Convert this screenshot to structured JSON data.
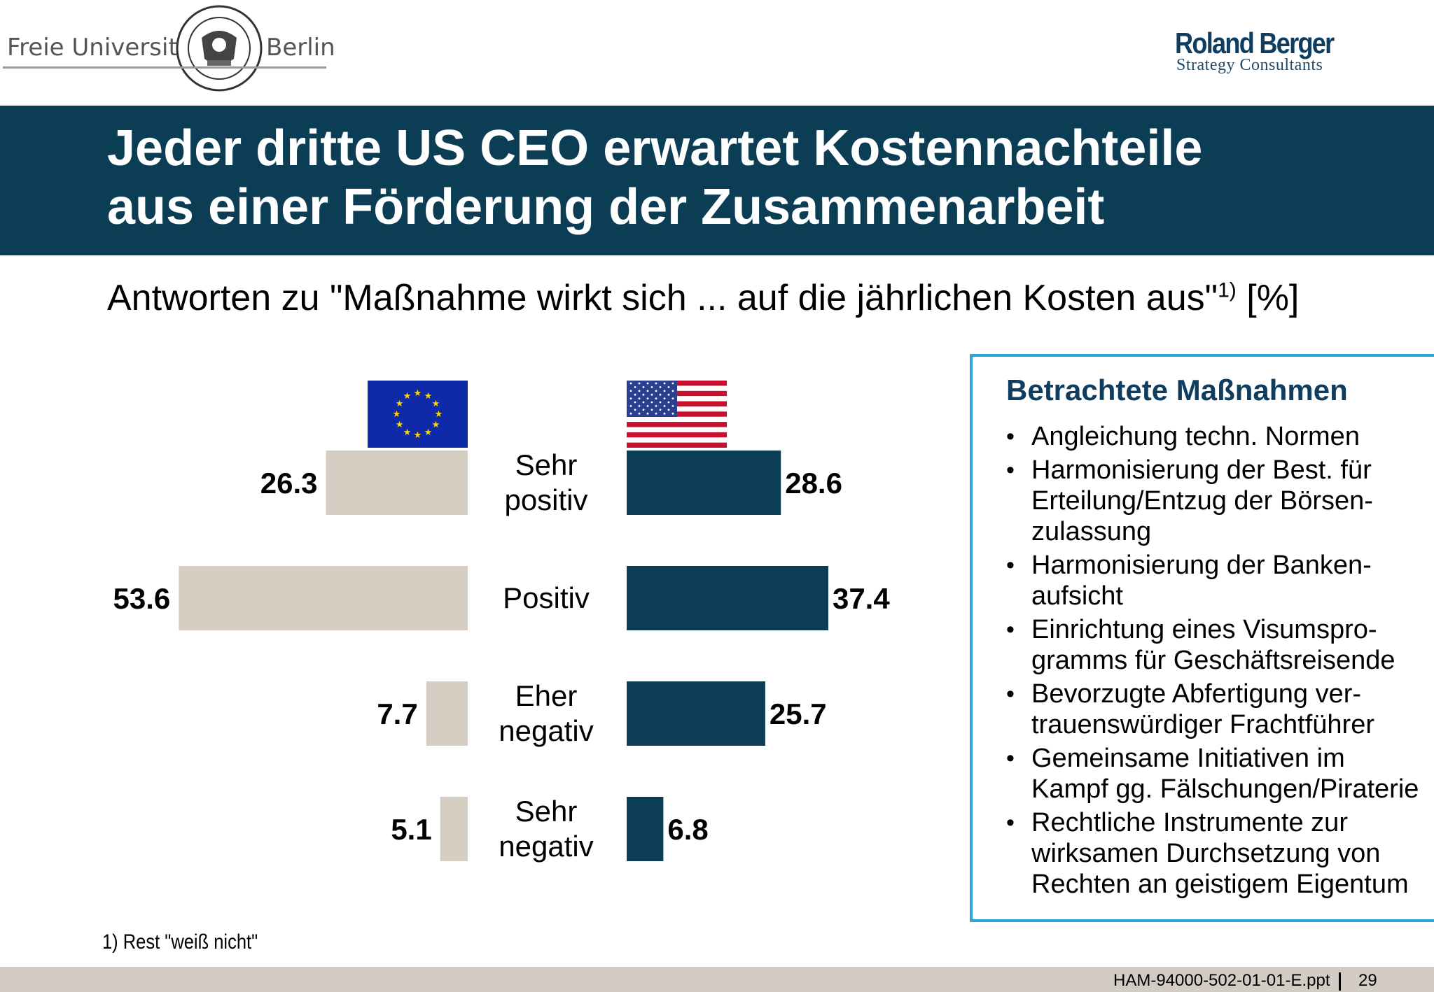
{
  "header": {
    "university_left": "Freie Universität",
    "university_right": "Berlin",
    "company_name": "Roland Berger",
    "company_sub": "Strategy Consultants"
  },
  "title": {
    "line1": "Jeder dritte US CEO erwartet Kostennachteile",
    "line2": "aus einer Förderung der Zusammenarbeit"
  },
  "subtitle": {
    "text": "Antworten zu \"Maßnahme wirkt sich ... auf die jährlichen Kosten aus\"",
    "sup": "1)",
    "unit": " [%]"
  },
  "chart_data": {
    "type": "bar",
    "orientation": "horizontal-butterfly",
    "categories": [
      [
        "Sehr",
        "positiv"
      ],
      [
        "Positiv"
      ],
      [
        "Eher",
        "negativ"
      ],
      [
        "Sehr",
        "negativ"
      ]
    ],
    "series": [
      {
        "id": "eu",
        "values": [
          26.3,
          53.6,
          7.7,
          5.1
        ],
        "color": "#d6cdc3",
        "flag": "EU"
      },
      {
        "id": "us",
        "values": [
          28.6,
          37.4,
          25.7,
          6.8
        ],
        "color": "#0b3d55",
        "flag": "USA"
      }
    ],
    "unit": "%"
  },
  "info_box": {
    "title": "Betrachtete Maßnahmen",
    "items": [
      "Angleichung techn. Normen",
      "Harmonisierung der Best. für\nErteilung/Entzug der Börsen-\nzulassung",
      "Harmonisierung der Banken-\naufsicht",
      "Einrichtung eines Visumspro-\ngramms für Geschäftsreisende",
      "Bevorzugte Abfertigung ver-\ntrauenswürdiger Frachtführer",
      "Gemeinsame Initiativen im\nKampf gg. Fälschungen/Piraterie",
      "Rechtliche Instrumente zur\nwirksamen Durchsetzung von\nRechten an geistigem Eigentum"
    ]
  },
  "footnote": "1) Rest \"weiß nicht\"",
  "footer": {
    "file": "HAM-94000-502-01-01-E.ppt",
    "page": "29"
  }
}
